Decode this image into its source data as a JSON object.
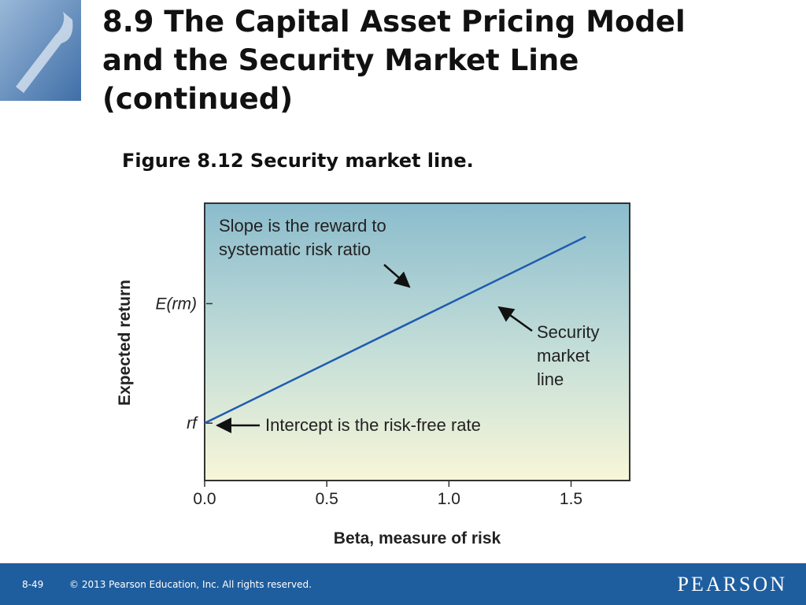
{
  "slide": {
    "title_lines": [
      "8.9  The Capital Asset Pricing Model",
      "and the Security Market Line",
      "(continued)"
    ],
    "caption": "Figure 8.12  Security market line.",
    "page": "8-49",
    "copyright": "© 2013 Pearson Education, Inc. All rights reserved.",
    "brand": "PEARSON"
  },
  "chart_data": {
    "type": "line",
    "x_label": "Beta, measure of risk",
    "y_label": "Expected return",
    "x": [
      0,
      1.56
    ],
    "series": [
      {
        "name": "Security market line",
        "color": "#1f5cb0",
        "values": [
          1,
          2.56
        ]
      }
    ],
    "xlim": [
      0,
      1.74
    ],
    "xticks": [
      {
        "value": 0,
        "label": "0.0"
      },
      0.5,
      {
        "value": 1,
        "label": "1.0"
      },
      1.5
    ],
    "ylim": [
      0.52,
      2.84
    ],
    "yticks": [
      {
        "value": 1,
        "label": "rf"
      },
      {
        "value": 2,
        "label": "E(rm)"
      }
    ],
    "annotations": [
      [
        "Slope is the reward to",
        "systematic risk ratio"
      ],
      [
        "Security",
        "market",
        "line"
      ],
      [
        "Intercept is the risk-free rate"
      ]
    ]
  }
}
